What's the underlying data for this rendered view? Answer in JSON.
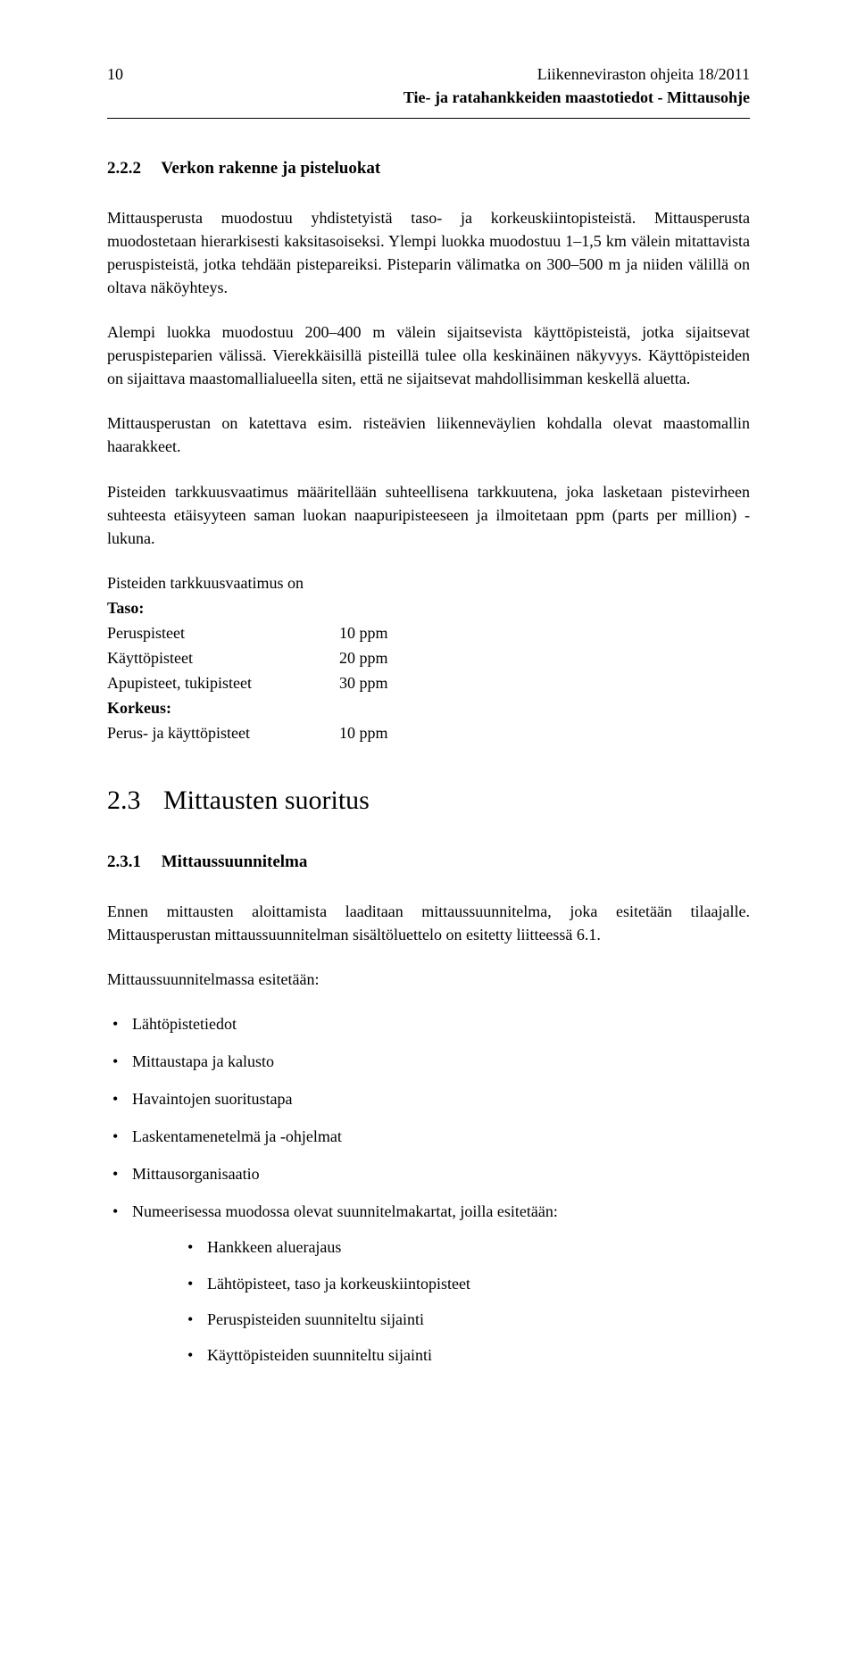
{
  "header": {
    "page_number": "10",
    "doc_line1": "Liikenneviraston ohjeita 18/2011",
    "doc_line2": "Tie- ja ratahankkeiden maastotiedot - Mittausohje"
  },
  "subsection": {
    "number": "2.2.2",
    "title": "Verkon rakenne ja pisteluokat"
  },
  "paras": {
    "p1": "Mittausperusta muodostuu yhdistetyistä taso- ja korkeuskiintopisteistä. Mittausperusta muodostetaan hierarkisesti kaksitasoiseksi. Ylempi luokka muodostuu 1–1,5 km välein mitattavista peruspisteistä, jotka tehdään pistepareiksi. Pisteparin välimatka on 300–500 m ja niiden välillä on oltava näköyhteys.",
    "p2": "Alempi luokka muodostuu 200–400 m välein sijaitsevista käyttöpisteistä, jotka sijaitsevat peruspisteparien välissä. Vierekkäisillä pisteillä tulee olla keskinäinen näkyvyys. Käyttöpisteiden on sijaittava maastomallialueella siten, että ne sijaitsevat mahdollisimman keskellä aluetta.",
    "p3": "Mittausperustan on katettava esim. risteävien liikenneväylien kohdalla olevat maastomallin haarakkeet.",
    "p4": "Pisteiden tarkkuusvaatimus määritellään suhteellisena tarkkuutena, joka lasketaan pistevirheen suhteesta etäisyyteen saman luokan naapuripisteeseen ja ilmoitetaan ppm (parts per million) -lukuna."
  },
  "reqs": {
    "intro": "Pisteiden tarkkuusvaatimus on",
    "taso_label": "Taso:",
    "rows_taso": [
      {
        "k": "Peruspisteet",
        "v": "10 ppm"
      },
      {
        "k": "Käyttöpisteet",
        "v": "20 ppm"
      },
      {
        "k": "Apupisteet, tukipisteet",
        "v": "30 ppm"
      }
    ],
    "korkeus_label": "Korkeus:",
    "rows_korkeus": [
      {
        "k": "Perus- ja käyttöpisteet",
        "v": "10 ppm"
      }
    ]
  },
  "section": {
    "number": "2.3",
    "title": "Mittausten suoritus"
  },
  "subsection2": {
    "number": "2.3.1",
    "title": "Mittaussuunnitelma"
  },
  "paras2": {
    "p1": "Ennen mittausten aloittamista laaditaan mittaussuunnitelma, joka esitetään tilaajalle. Mittausperustan mittaussuunnitelman sisältöluettelo on esitetty liitteessä 6.1.",
    "p2": "Mittaussuunnitelmassa esitetään:"
  },
  "bullets": [
    "Lähtöpistetiedot",
    "Mittaustapa ja kalusto",
    "Havaintojen suoritustapa",
    "Laskentamenetelmä ja -ohjelmat",
    "Mittausorganisaatio",
    "Numeerisessa muodossa olevat suunnitelmakartat, joilla esitetään:"
  ],
  "nested_bullets": [
    "Hankkeen aluerajaus",
    "Lähtöpisteet, taso ja korkeuskiintopisteet",
    "Peruspisteiden suunniteltu sijainti",
    "Käyttöpisteiden suunniteltu sijainti"
  ]
}
